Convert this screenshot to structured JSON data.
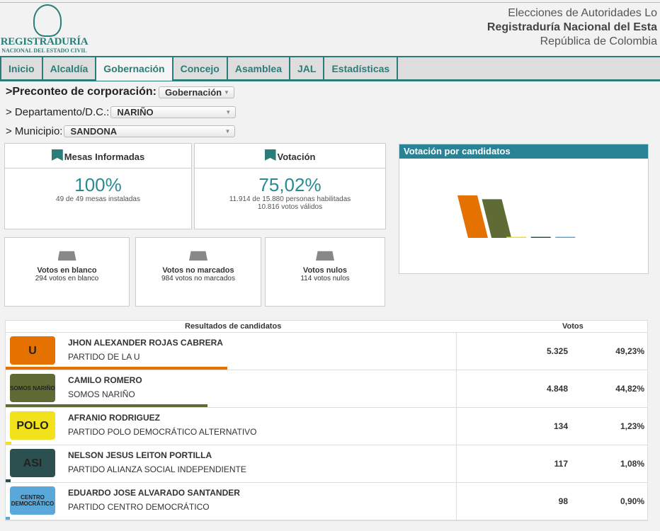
{
  "header": {
    "logo_line1": "REGISTRADURÍA",
    "logo_line2": "NACIONAL DEL ESTADO CIVIL",
    "line1": "Elecciones de Autoridades Lo",
    "line2": "Registraduría Nacional del Esta",
    "line3": "República de Colombia"
  },
  "nav": [
    "Inicio",
    "Alcaldía",
    "Gobernación",
    "Concejo",
    "Asamblea",
    "JAL",
    "Estadísticas"
  ],
  "nav_active": "Gobernación",
  "filters": {
    "corp_label": ">Preconteo de corporación:",
    "corp_value": "Gobernación",
    "dep_label": "> Departamento/D.C.:",
    "dep_value": "NARIÑO",
    "mun_label": "> Municipio:",
    "mun_value": "SANDONA"
  },
  "mesas": {
    "title": "Mesas Informadas",
    "pct": "100%",
    "detail": "49 de 49 mesas instaladas"
  },
  "votacion": {
    "title": "Votación",
    "pct": "75,02%",
    "detail1": "11.914 de 15.880 personas habilitadas",
    "detail2": "10.816 votos válidos"
  },
  "blanco": {
    "title": "Votos en blanco",
    "detail": "294 votos en blanco"
  },
  "nomarcados": {
    "title": "Votos no marcados",
    "detail": "984 votos no marcados"
  },
  "nulos": {
    "title": "Votos nulos",
    "detail": "114 votos nulos"
  },
  "chart_data": {
    "type": "bar",
    "title": "Votación por candidatos",
    "categories": [
      "JHON ALEXANDER ROJAS CABRERA",
      "CAMILO ROMERO",
      "AFRANIO RODRIGUEZ",
      "NELSON JESUS LEITON PORTILLA",
      "EDUARDO JOSE ALVARADO SANTANDER"
    ],
    "values": [
      5325,
      4848,
      134,
      117,
      98
    ],
    "colors": [
      "#e57200",
      "#5f6b35",
      "#f2e21b",
      "#2c4f4f",
      "#5aa7d9"
    ]
  },
  "table": {
    "header_candidates": "Resultados de candidatos",
    "header_votes": "Votos",
    "rows": [
      {
        "name": "JHON ALEXANDER ROJAS CABRERA",
        "party": "PARTIDO DE LA U",
        "votes": "5.325",
        "pct": "49,23%",
        "pct_value": 49.23,
        "color": "#e57200",
        "logo": "U"
      },
      {
        "name": "CAMILO ROMERO",
        "party": "SOMOS NARIÑO",
        "votes": "4.848",
        "pct": "44,82%",
        "pct_value": 44.82,
        "color": "#5f6b35",
        "logo": "SOMOS NARIÑO"
      },
      {
        "name": "AFRANIO RODRIGUEZ",
        "party": "PARTIDO POLO DEMOCRÁTICO ALTERNATIVO",
        "votes": "134",
        "pct": "1,23%",
        "pct_value": 1.23,
        "color": "#f2e21b",
        "logo": "POLO"
      },
      {
        "name": "NELSON JESUS LEITON PORTILLA",
        "party": "PARTIDO ALIANZA SOCIAL INDEPENDIENTE",
        "votes": "117",
        "pct": "1,08%",
        "pct_value": 1.08,
        "color": "#2c4f4f",
        "logo": "ASI"
      },
      {
        "name": "EDUARDO JOSE ALVARADO SANTANDER",
        "party": "PARTIDO CENTRO DEMOCRÁTICO",
        "votes": "98",
        "pct": "0,90%",
        "pct_value": 0.9,
        "color": "#5aa7d9",
        "logo": "CENTRO DEMOCRÁTICO"
      }
    ]
  }
}
